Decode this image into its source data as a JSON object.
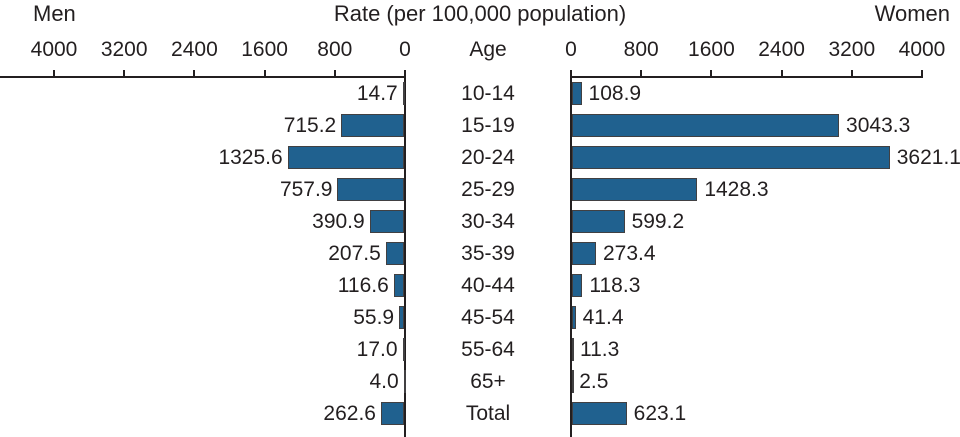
{
  "header": {
    "men_label": "Men",
    "title": "Rate (per 100,000 population)",
    "women_label": "Women",
    "age_header": "Age"
  },
  "chart_data": {
    "type": "bar",
    "layout": "population-pyramid",
    "title": "Rate (per 100,000 population)",
    "categories": [
      "10-14",
      "15-19",
      "20-24",
      "25-29",
      "30-34",
      "35-39",
      "40-44",
      "45-54",
      "55-64",
      "65+",
      "Total"
    ],
    "series": [
      {
        "name": "Men",
        "side": "left",
        "values": [
          14.7,
          715.2,
          1325.6,
          757.9,
          390.9,
          207.5,
          116.6,
          55.9,
          17.0,
          4.0,
          262.6
        ]
      },
      {
        "name": "Women",
        "side": "right",
        "values": [
          108.9,
          3043.3,
          3621.1,
          1428.3,
          599.2,
          273.4,
          118.3,
          41.4,
          11.3,
          2.5,
          623.1
        ]
      }
    ],
    "axis": {
      "ticks": [
        0,
        800,
        1600,
        2400,
        3200,
        4000
      ],
      "max": 4000,
      "label_decimals": 1
    },
    "colors": {
      "bar_fill": "#20618F",
      "bar_border": "#414042",
      "axis": "#231F20",
      "text": "#231F20"
    }
  }
}
